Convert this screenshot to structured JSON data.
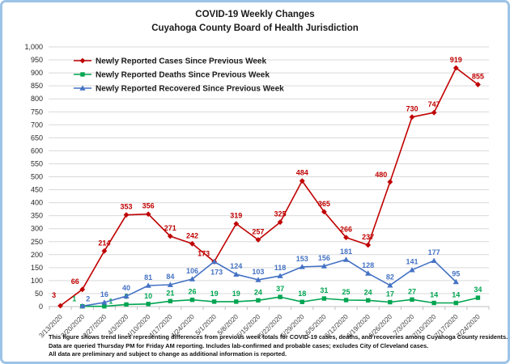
{
  "chart_data": {
    "type": "line",
    "title": "COVID-19 Weekly Changes",
    "subtitle": "Cuyahoga County Board of Health Jurisdiction",
    "categories": [
      "3/13/2020",
      "3/20/2020",
      "3/27/2020",
      "4/3/2020",
      "4/10/2020",
      "4/17/2020",
      "4/24/2020",
      "5/1/2020",
      "5/8/2020",
      "5/15/2020",
      "5/22/2020",
      "5/29/2020",
      "6/5/2020",
      "6/12/2020",
      "6/19/2020",
      "6/26/2020",
      "7/3/2020",
      "7/10/2020",
      "7/17/2020",
      "7/24/2020"
    ],
    "ylim": [
      0,
      1000
    ],
    "ytick_step": 50,
    "grid": true,
    "legend_position": "top-left",
    "series": [
      {
        "name": "Newly Reported Cases Since Previous Week",
        "color": "#C00000",
        "marker": "diamond",
        "values": [
          3,
          66,
          214,
          353,
          356,
          271,
          242,
          173,
          319,
          257,
          325,
          484,
          365,
          266,
          237,
          480,
          730,
          747,
          919,
          855
        ]
      },
      {
        "name": "Newly Reported Deaths Since Previous Week",
        "color": "#00A551",
        "marker": "square",
        "values": [
          null,
          1,
          1,
          8,
          10,
          21,
          26,
          19,
          19,
          24,
          37,
          18,
          31,
          25,
          24,
          17,
          27,
          14,
          14,
          34
        ]
      },
      {
        "name": "Newly Reported Recovered Since Previous Week",
        "color": "#4472C4",
        "marker": "triangle",
        "values": [
          null,
          2,
          16,
          40,
          81,
          84,
          106,
          173,
          124,
          103,
          118,
          153,
          156,
          181,
          128,
          82,
          141,
          177,
          95,
          null
        ]
      }
    ]
  },
  "footnotes": [
    "This figure shows trend lines representing differences from previous week totals for COVID-19 cases, deaths, and recoveries among Cuyahoga County residents.",
    "Data are queried Thursday PM for Friday AM reporting. Includes lab-confirmed and probable cases; excludes City of Cleveland cases.",
    "All data are preliminary and subject to change as additional information is reported."
  ],
  "colors": {
    "frame_border": "#9DC3E6",
    "gridline": "#D9D9D9",
    "axis": "#BFBFBF",
    "tick_label": "#3f3f3f",
    "legend_text": "#1a1a1a"
  }
}
